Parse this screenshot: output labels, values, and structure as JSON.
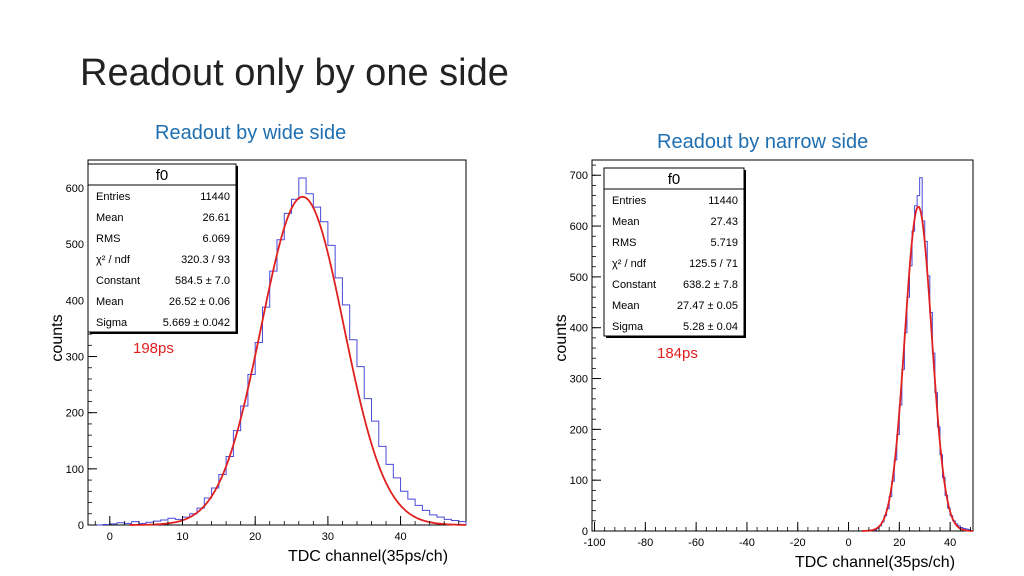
{
  "slide": {
    "title": "Readout only by one side"
  },
  "chart_data": [
    {
      "type": "histogram",
      "subtitle": "Readout by wide side",
      "annotation": "198ps",
      "xlabel": "TDC channel(35ps/ch)",
      "ylabel": "counts",
      "xlim": [
        -3,
        49
      ],
      "ylim": [
        0,
        650
      ],
      "x_ticks": [
        0,
        10,
        20,
        30,
        40
      ],
      "y_ticks": [
        0,
        100,
        200,
        300,
        400,
        500,
        600
      ],
      "stats": {
        "title": "f0",
        "rows": [
          {
            "label": "Entries",
            "value": "11440"
          },
          {
            "label": "Mean",
            "value": "26.61"
          },
          {
            "label": "RMS",
            "value": "6.069"
          },
          {
            "label": "χ² / ndf",
            "value": "320.3 / 93"
          },
          {
            "label": "Constant",
            "value": "584.5 ± 7.0"
          },
          {
            "label": "Mean",
            "value": "26.52 ± 0.06"
          },
          {
            "label": "Sigma",
            "value": "5.669 ± 0.042"
          }
        ]
      },
      "fit": {
        "function": "gaus",
        "constant": 584.5,
        "mean": 26.52,
        "sigma": 5.669
      },
      "histogram": {
        "bin_width": 1,
        "bins": [
          {
            "x": -3,
            "y": 0
          },
          {
            "x": -2,
            "y": 0
          },
          {
            "x": -1,
            "y": 1
          },
          {
            "x": 0,
            "y": 2
          },
          {
            "x": 1,
            "y": 4
          },
          {
            "x": 2,
            "y": 3
          },
          {
            "x": 3,
            "y": 6
          },
          {
            "x": 4,
            "y": 3
          },
          {
            "x": 5,
            "y": 5
          },
          {
            "x": 6,
            "y": 7
          },
          {
            "x": 7,
            "y": 9
          },
          {
            "x": 8,
            "y": 12
          },
          {
            "x": 9,
            "y": 10
          },
          {
            "x": 10,
            "y": 14
          },
          {
            "x": 11,
            "y": 20
          },
          {
            "x": 12,
            "y": 30
          },
          {
            "x": 13,
            "y": 48
          },
          {
            "x": 14,
            "y": 66
          },
          {
            "x": 15,
            "y": 90
          },
          {
            "x": 16,
            "y": 122
          },
          {
            "x": 17,
            "y": 168
          },
          {
            "x": 18,
            "y": 212
          },
          {
            "x": 19,
            "y": 268
          },
          {
            "x": 20,
            "y": 325
          },
          {
            "x": 21,
            "y": 388
          },
          {
            "x": 22,
            "y": 452
          },
          {
            "x": 23,
            "y": 508
          },
          {
            "x": 24,
            "y": 555
          },
          {
            "x": 25,
            "y": 580
          },
          {
            "x": 26,
            "y": 618
          },
          {
            "x": 27,
            "y": 590
          },
          {
            "x": 28,
            "y": 566
          },
          {
            "x": 29,
            "y": 540
          },
          {
            "x": 30,
            "y": 498
          },
          {
            "x": 31,
            "y": 440
          },
          {
            "x": 32,
            "y": 392
          },
          {
            "x": 33,
            "y": 330
          },
          {
            "x": 34,
            "y": 282
          },
          {
            "x": 35,
            "y": 225
          },
          {
            "x": 36,
            "y": 185
          },
          {
            "x": 37,
            "y": 140
          },
          {
            "x": 38,
            "y": 108
          },
          {
            "x": 39,
            "y": 84
          },
          {
            "x": 40,
            "y": 60
          },
          {
            "x": 41,
            "y": 46
          },
          {
            "x": 42,
            "y": 35
          },
          {
            "x": 43,
            "y": 26
          },
          {
            "x": 44,
            "y": 18
          },
          {
            "x": 45,
            "y": 14
          },
          {
            "x": 46,
            "y": 10
          },
          {
            "x": 47,
            "y": 8
          },
          {
            "x": 48,
            "y": 6
          }
        ]
      }
    },
    {
      "type": "histogram",
      "subtitle": "Readout by narrow side",
      "annotation": "184ps",
      "xlabel": "TDC channel(35ps/ch)",
      "ylabel": "counts",
      "xlim": [
        -101,
        49
      ],
      "ylim": [
        0,
        730
      ],
      "x_ticks": [
        -100,
        -80,
        -60,
        -40,
        -20,
        0,
        20,
        40
      ],
      "y_ticks": [
        0,
        100,
        200,
        300,
        400,
        500,
        600,
        700
      ],
      "stats": {
        "title": "f0",
        "rows": [
          {
            "label": "Entries",
            "value": "11440"
          },
          {
            "label": "Mean",
            "value": "27.43"
          },
          {
            "label": "RMS",
            "value": "5.719"
          },
          {
            "label": "χ² / ndf",
            "value": "125.5 / 71"
          },
          {
            "label": "Constant",
            "value": "638.2 ± 7.8"
          },
          {
            "label": "Mean",
            "value": "27.47 ± 0.05"
          },
          {
            "label": "Sigma",
            "value": "5.28 ± 0.04"
          }
        ]
      },
      "fit": {
        "function": "gaus",
        "constant": 638.2,
        "mean": 27.47,
        "sigma": 5.28
      },
      "histogram": {
        "bin_width": 1,
        "bins": [
          {
            "x": 10,
            "y": 2
          },
          {
            "x": 11,
            "y": 5
          },
          {
            "x": 12,
            "y": 10
          },
          {
            "x": 13,
            "y": 18
          },
          {
            "x": 14,
            "y": 30
          },
          {
            "x": 15,
            "y": 44
          },
          {
            "x": 16,
            "y": 68
          },
          {
            "x": 17,
            "y": 98
          },
          {
            "x": 18,
            "y": 140
          },
          {
            "x": 19,
            "y": 190
          },
          {
            "x": 20,
            "y": 248
          },
          {
            "x": 21,
            "y": 318
          },
          {
            "x": 22,
            "y": 390
          },
          {
            "x": 23,
            "y": 460
          },
          {
            "x": 24,
            "y": 522
          },
          {
            "x": 25,
            "y": 590
          },
          {
            "x": 26,
            "y": 640
          },
          {
            "x": 27,
            "y": 660
          },
          {
            "x": 28,
            "y": 695
          },
          {
            "x": 29,
            "y": 610
          },
          {
            "x": 30,
            "y": 570
          },
          {
            "x": 31,
            "y": 502
          },
          {
            "x": 32,
            "y": 430
          },
          {
            "x": 33,
            "y": 350
          },
          {
            "x": 34,
            "y": 272
          },
          {
            "x": 35,
            "y": 205
          },
          {
            "x": 36,
            "y": 150
          },
          {
            "x": 37,
            "y": 105
          },
          {
            "x": 38,
            "y": 70
          },
          {
            "x": 39,
            "y": 45
          },
          {
            "x": 40,
            "y": 30
          },
          {
            "x": 41,
            "y": 20
          },
          {
            "x": 42,
            "y": 14
          },
          {
            "x": 43,
            "y": 10
          },
          {
            "x": 44,
            "y": 7
          },
          {
            "x": 45,
            "y": 5
          },
          {
            "x": 46,
            "y": 4
          },
          {
            "x": 47,
            "y": 3
          }
        ]
      }
    }
  ]
}
